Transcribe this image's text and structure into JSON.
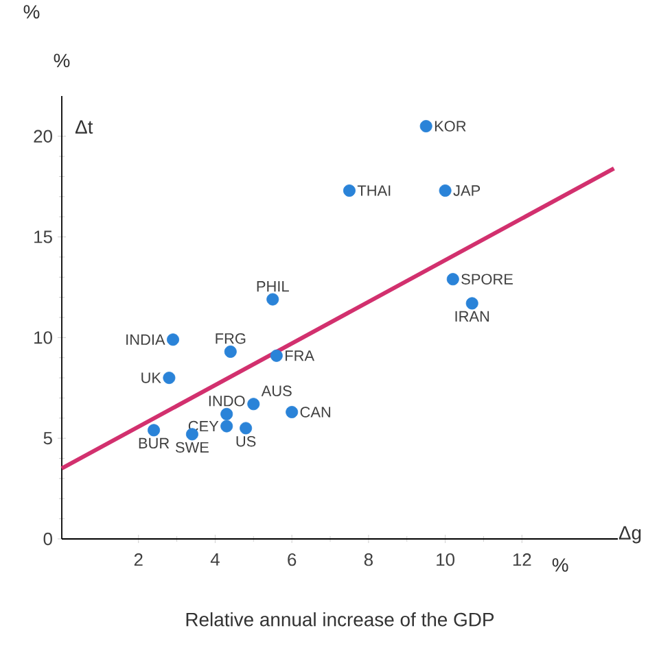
{
  "chart_data": {
    "type": "scatter",
    "xlabel": "Relative annual increase of the GDP",
    "ylabel": "Δt",
    "annotations": [
      "%",
      "%",
      "%",
      "Δg"
    ],
    "xlim": [
      0,
      14.5
    ],
    "ylim": [
      0,
      22
    ],
    "xticks": [
      2,
      4,
      6,
      8,
      10,
      12
    ],
    "yticks": [
      0,
      5,
      10,
      15,
      20
    ],
    "grid": false,
    "marker": "circle",
    "series": [
      {
        "name": "KOR",
        "color": "#2a83d8",
        "x": [
          9.5
        ],
        "values": [
          20.5
        ]
      },
      {
        "name": "THAI",
        "color": "#2a83d8",
        "x": [
          7.5
        ],
        "values": [
          17.3
        ]
      },
      {
        "name": "JAP",
        "color": "#2a83d8",
        "x": [
          10.0
        ],
        "values": [
          17.3
        ]
      },
      {
        "name": "SPORE",
        "color": "#2a83d8",
        "x": [
          10.2
        ],
        "values": [
          12.9
        ]
      },
      {
        "name": "IRAN",
        "color": "#2a83d8",
        "x": [
          10.7
        ],
        "values": [
          11.7
        ]
      },
      {
        "name": "PHIL",
        "color": "#2a83d8",
        "x": [
          5.5
        ],
        "values": [
          11.9
        ]
      },
      {
        "name": "INDIA",
        "color": "#2a83d8",
        "x": [
          2.9
        ],
        "values": [
          9.9
        ]
      },
      {
        "name": "FRG",
        "color": "#2a83d8",
        "x": [
          4.4
        ],
        "values": [
          9.3
        ]
      },
      {
        "name": "FRA",
        "color": "#2a83d8",
        "x": [
          5.6
        ],
        "values": [
          9.1
        ]
      },
      {
        "name": "UK",
        "color": "#2a83d8",
        "x": [
          2.8
        ],
        "values": [
          8.0
        ]
      },
      {
        "name": "AUS",
        "color": "#2a83d8",
        "x": [
          5.0
        ],
        "values": [
          6.7
        ]
      },
      {
        "name": "INDO",
        "color": "#2a83d8",
        "x": [
          4.3
        ],
        "values": [
          6.2
        ]
      },
      {
        "name": "CEY",
        "color": "#2a83d8",
        "x": [
          4.3
        ],
        "values": [
          5.6
        ]
      },
      {
        "name": "CAN",
        "color": "#2a83d8",
        "x": [
          6.0
        ],
        "values": [
          6.3
        ]
      },
      {
        "name": "BUR",
        "color": "#2a83d8",
        "x": [
          2.4
        ],
        "values": [
          5.4
        ]
      },
      {
        "name": "SWE",
        "color": "#2a83d8",
        "x": [
          3.4
        ],
        "values": [
          5.2
        ]
      },
      {
        "name": "US",
        "color": "#2a83d8",
        "x": [
          4.8
        ],
        "values": [
          5.5
        ]
      },
      {
        "type": "line",
        "marker": "none",
        "color": "#d2306e",
        "x": [
          0,
          14.4
        ],
        "values": [
          3.5,
          18.4
        ]
      }
    ]
  }
}
